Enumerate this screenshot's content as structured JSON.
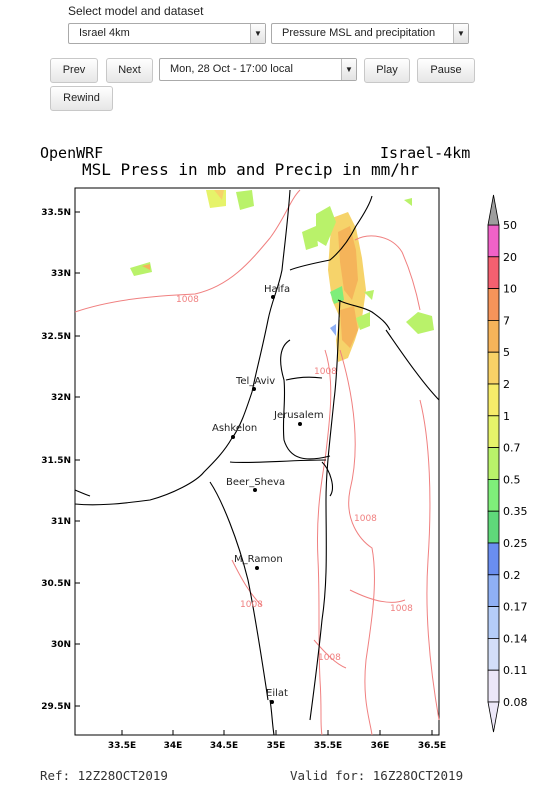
{
  "controls": {
    "select_label": "Select model and dataset",
    "model_select": "Israel 4km",
    "dataset_select": "Pressure MSL and precipitation",
    "time_select": "Mon, 28 Oct - 17:00 local",
    "prev_label": "Prev",
    "next_label": "Next",
    "play_label": "Play",
    "pause_label": "Pause",
    "rewind_label": "Rewind"
  },
  "plot": {
    "left_title": "OpenWRF",
    "right_title": "Israel-4km",
    "main_title": "MSL Press in mb and Precip in mm/hr",
    "lat_ticks": [
      "33.5N",
      "33N",
      "32.5N",
      "32N",
      "31.5N",
      "31N",
      "30.5N",
      "30N",
      "29.5N"
    ],
    "lon_ticks": [
      "33.5E",
      "34E",
      "34.5E",
      "35E",
      "35.5E",
      "36E",
      "36.5E"
    ],
    "cities": [
      "Haifa",
      "Tel_Aviv",
      "Jerusalem",
      "Ashkelon",
      "Beer_Sheva",
      "M_Ramon",
      "Eilat"
    ],
    "isobar_label": "1008",
    "colorbar_labels": [
      "50",
      "20",
      "10",
      "7",
      "5",
      "2",
      "1",
      "0.7",
      "0.5",
      "0.35",
      "0.25",
      "0.2",
      "0.17",
      "0.14",
      "0.11",
      "0.08"
    ],
    "colorbar_colors": [
      "#9e9e9e",
      "#f062c8",
      "#f46070",
      "#f5945a",
      "#f6b45a",
      "#f8d267",
      "#f7ec6a",
      "#e6f36a",
      "#b9f26a",
      "#7fee7a",
      "#5fd87a",
      "#6a8ef0",
      "#8fb0f5",
      "#b5cdf8",
      "#d3def8",
      "#ece7f8"
    ],
    "ref_text": "Ref: 12Z28OCT2019",
    "valid_text": "Valid for: 16Z28OCT2019"
  }
}
